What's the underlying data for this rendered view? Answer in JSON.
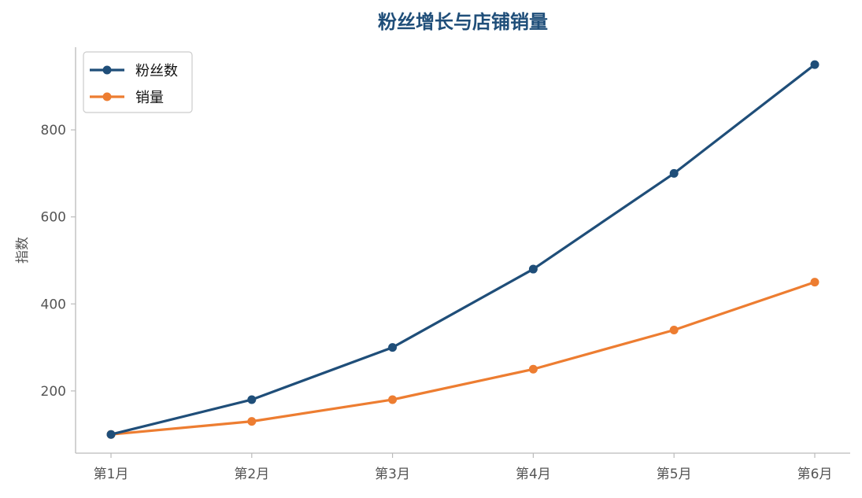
{
  "chart_data": {
    "type": "line",
    "title": "粉丝增长与店铺销量",
    "xlabel": "",
    "ylabel": "指数",
    "categories": [
      "第1月",
      "第2月",
      "第3月",
      "第4月",
      "第5月",
      "第6月"
    ],
    "series": [
      {
        "name": "粉丝数",
        "color": "#1f4e79",
        "values": [
          100,
          180,
          300,
          480,
          700,
          950
        ]
      },
      {
        "name": "销量",
        "color": "#ed7d31",
        "values": [
          100,
          130,
          180,
          250,
          340,
          450
        ]
      }
    ],
    "ylim": [
      57,
      990
    ],
    "yticks": [
      200,
      400,
      600,
      800
    ],
    "grid": false,
    "legend_position": "top-left",
    "title_color": "#1f4e79",
    "axis_color": "#bbbbbb"
  }
}
